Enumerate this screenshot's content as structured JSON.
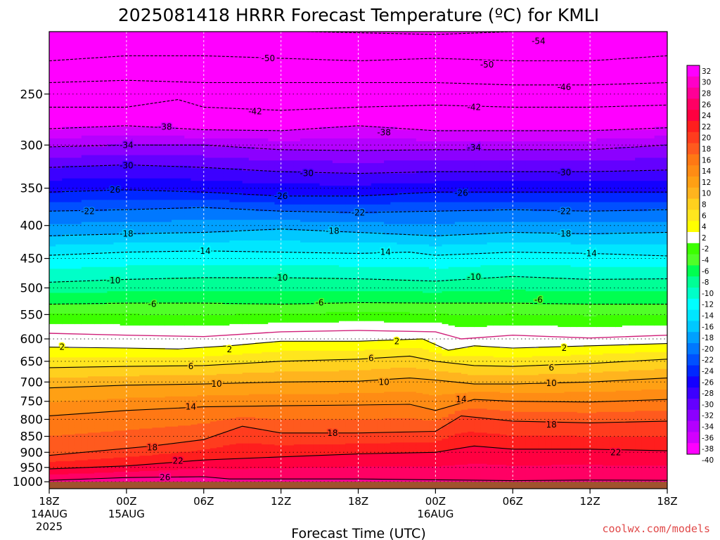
{
  "chart_data": {
    "type": "heatmap",
    "title": "2025081418 HRRR Forecast Temperature (ºC) for KMLI",
    "xlabel": "Forecast Time (UTC)",
    "ylabel": "",
    "credit": "coolwx.com/models",
    "x_unit": "forecast hour",
    "xlim": [
      0,
      48
    ],
    "x_ticks": [
      {
        "x": 0,
        "label": "18Z",
        "sub1": "14AUG",
        "sub2": "2025"
      },
      {
        "x": 6,
        "label": "00Z",
        "sub1": "15AUG",
        "sub2": ""
      },
      {
        "x": 12,
        "label": "06Z",
        "sub1": "",
        "sub2": ""
      },
      {
        "x": 18,
        "label": "12Z",
        "sub1": "",
        "sub2": ""
      },
      {
        "x": 24,
        "label": "18Z",
        "sub1": "",
        "sub2": ""
      },
      {
        "x": 30,
        "label": "00Z",
        "sub1": "16AUG",
        "sub2": ""
      },
      {
        "x": 36,
        "label": "06Z",
        "sub1": "",
        "sub2": ""
      },
      {
        "x": 42,
        "label": "12Z",
        "sub1": "",
        "sub2": ""
      },
      {
        "x": 48,
        "label": "18Z",
        "sub1": "",
        "sub2": ""
      }
    ],
    "y_unit": "hPa",
    "ylim": [
      1025,
      200
    ],
    "y_ticks": [
      250,
      300,
      350,
      400,
      450,
      500,
      550,
      600,
      650,
      700,
      750,
      800,
      850,
      900,
      950,
      1000
    ],
    "surface_pressure_hpa": 1000,
    "colorbar": {
      "labels": [
        32,
        30,
        28,
        26,
        24,
        22,
        20,
        18,
        16,
        14,
        12,
        10,
        8,
        6,
        4,
        2,
        -2,
        -4,
        -6,
        -8,
        -10,
        -12,
        -14,
        -16,
        -18,
        -20,
        -22,
        -24,
        -26,
        -28,
        -30,
        -32,
        -34,
        -36,
        -38,
        -40
      ],
      "colors": [
        "#ff00ff",
        "#ff00c8",
        "#ff0096",
        "#ff0064",
        "#ff0040",
        "#ff1e1e",
        "#ff3c1e",
        "#ff5a1e",
        "#ff7814",
        "#ff8c14",
        "#ffa014",
        "#ffb41e",
        "#ffd01e",
        "#ffe61e",
        "#ffff00",
        "#ffffff",
        "#3cff00",
        "#50ff28",
        "#00ff50",
        "#00ff96",
        "#00ffc8",
        "#00ffff",
        "#00e6ff",
        "#00c8ff",
        "#00a0ff",
        "#0078ff",
        "#0050ff",
        "#0028ff",
        "#1400ff",
        "#3c00ff",
        "#6400ff",
        "#8c00ff",
        "#b400ff",
        "#d200ff",
        "#ff00ff"
      ]
    },
    "isotherms": [
      {
        "temp": 26,
        "points": [
          [
            0,
            995
          ],
          [
            6,
            985
          ],
          [
            12,
            982
          ],
          [
            14,
            990
          ],
          [
            24,
            990
          ],
          [
            30,
            993
          ],
          [
            36,
            996
          ],
          [
            42,
            994
          ],
          [
            48,
            995
          ]
        ],
        "labels": [
          [
            9,
            985
          ]
        ]
      },
      {
        "temp": 22,
        "points": [
          [
            0,
            955
          ],
          [
            6,
            945
          ],
          [
            12,
            925
          ],
          [
            18,
            915
          ],
          [
            24,
            905
          ],
          [
            30,
            900
          ],
          [
            33,
            880
          ],
          [
            36,
            890
          ],
          [
            42,
            890
          ],
          [
            48,
            895
          ]
        ],
        "labels": [
          [
            10,
            928
          ],
          [
            44,
            900
          ]
        ]
      },
      {
        "temp": 18,
        "points": [
          [
            0,
            910
          ],
          [
            4,
            895
          ],
          [
            8,
            880
          ],
          [
            12,
            860
          ],
          [
            15,
            820
          ],
          [
            18,
            840
          ],
          [
            24,
            840
          ],
          [
            30,
            835
          ],
          [
            32,
            790
          ],
          [
            36,
            805
          ],
          [
            42,
            810
          ],
          [
            48,
            805
          ]
        ],
        "labels": [
          [
            8,
            885
          ],
          [
            22,
            840
          ],
          [
            39,
            815
          ]
        ]
      },
      {
        "temp": 14,
        "points": [
          [
            0,
            790
          ],
          [
            6,
            775
          ],
          [
            12,
            765
          ],
          [
            18,
            762
          ],
          [
            24,
            760
          ],
          [
            28,
            758
          ],
          [
            30,
            775
          ],
          [
            33,
            745
          ],
          [
            36,
            750
          ],
          [
            42,
            752
          ],
          [
            48,
            745
          ]
        ],
        "labels": [
          [
            11,
            765
          ],
          [
            32,
            745
          ]
        ]
      },
      {
        "temp": 10,
        "points": [
          [
            0,
            715
          ],
          [
            6,
            708
          ],
          [
            12,
            705
          ],
          [
            18,
            700
          ],
          [
            24,
            698
          ],
          [
            28,
            690
          ],
          [
            30,
            695
          ],
          [
            33,
            705
          ],
          [
            36,
            705
          ],
          [
            42,
            700
          ],
          [
            48,
            690
          ]
        ],
        "labels": [
          [
            13,
            705
          ],
          [
            26,
            700
          ],
          [
            39,
            703
          ]
        ]
      },
      {
        "temp": 6,
        "points": [
          [
            0,
            665
          ],
          [
            6,
            662
          ],
          [
            12,
            660
          ],
          [
            18,
            650
          ],
          [
            24,
            645
          ],
          [
            28,
            638
          ],
          [
            30,
            650
          ],
          [
            33,
            660
          ],
          [
            36,
            662
          ],
          [
            42,
            655
          ],
          [
            48,
            645
          ]
        ],
        "labels": [
          [
            11,
            662
          ],
          [
            25,
            643
          ],
          [
            39,
            665
          ]
        ]
      },
      {
        "temp": 2,
        "points": [
          [
            0,
            618
          ],
          [
            6,
            620
          ],
          [
            10,
            622
          ],
          [
            14,
            615
          ],
          [
            18,
            605
          ],
          [
            24,
            605
          ],
          [
            29,
            600
          ],
          [
            31,
            625
          ],
          [
            33,
            615
          ],
          [
            36,
            620
          ],
          [
            42,
            615
          ],
          [
            48,
            610
          ]
        ],
        "labels": [
          [
            1,
            618
          ],
          [
            14,
            623
          ],
          [
            27,
            605
          ],
          [
            40,
            620
          ]
        ]
      },
      {
        "temp": -6,
        "points": [
          [
            0,
            530
          ],
          [
            6,
            528
          ],
          [
            12,
            528
          ],
          [
            18,
            530
          ],
          [
            24,
            527
          ],
          [
            30,
            528
          ],
          [
            36,
            528
          ],
          [
            42,
            530
          ],
          [
            48,
            530
          ]
        ],
        "labels": [
          [
            8,
            530
          ],
          [
            21,
            527
          ],
          [
            38,
            522
          ]
        ]
      },
      {
        "temp": -10,
        "points": [
          [
            0,
            490
          ],
          [
            6,
            485
          ],
          [
            12,
            482
          ],
          [
            18,
            482
          ],
          [
            24,
            484
          ],
          [
            30,
            488
          ],
          [
            36,
            480
          ],
          [
            42,
            485
          ],
          [
            48,
            484
          ]
        ],
        "labels": [
          [
            5,
            487
          ],
          [
            18,
            482
          ],
          [
            33,
            481
          ]
        ]
      },
      {
        "temp": -14,
        "points": [
          [
            0,
            445
          ],
          [
            6,
            440
          ],
          [
            12,
            438
          ],
          [
            18,
            440
          ],
          [
            24,
            442
          ],
          [
            28,
            440
          ],
          [
            30,
            445
          ],
          [
            36,
            440
          ],
          [
            42,
            442
          ],
          [
            48,
            446
          ]
        ],
        "labels": [
          [
            12,
            438
          ],
          [
            26,
            440
          ],
          [
            42,
            442
          ]
        ]
      },
      {
        "temp": -18,
        "points": [
          [
            0,
            415
          ],
          [
            6,
            412
          ],
          [
            12,
            410
          ],
          [
            18,
            405
          ],
          [
            24,
            410
          ],
          [
            30,
            415
          ],
          [
            36,
            410
          ],
          [
            42,
            412
          ],
          [
            48,
            410
          ]
        ],
        "labels": [
          [
            6,
            412
          ],
          [
            22,
            408
          ],
          [
            40,
            412
          ]
        ]
      },
      {
        "temp": -22,
        "points": [
          [
            0,
            380
          ],
          [
            6,
            378
          ],
          [
            12,
            375
          ],
          [
            18,
            380
          ],
          [
            24,
            382
          ],
          [
            30,
            380
          ],
          [
            36,
            378
          ],
          [
            42,
            380
          ],
          [
            48,
            378
          ]
        ],
        "labels": [
          [
            3,
            380
          ],
          [
            24,
            382
          ],
          [
            40,
            380
          ]
        ]
      },
      {
        "temp": -26,
        "points": [
          [
            0,
            355
          ],
          [
            6,
            352
          ],
          [
            12,
            355
          ],
          [
            18,
            360
          ],
          [
            24,
            360
          ],
          [
            30,
            355
          ],
          [
            36,
            355
          ],
          [
            42,
            355
          ],
          [
            48,
            355
          ]
        ],
        "labels": [
          [
            5,
            352
          ],
          [
            18,
            360
          ],
          [
            32,
            356
          ]
        ]
      },
      {
        "temp": -30,
        "points": [
          [
            0,
            325
          ],
          [
            6,
            322
          ],
          [
            12,
            325
          ],
          [
            18,
            330
          ],
          [
            24,
            332
          ],
          [
            30,
            330
          ],
          [
            36,
            330
          ],
          [
            42,
            330
          ],
          [
            48,
            328
          ]
        ],
        "labels": [
          [
            6,
            323
          ],
          [
            20,
            332
          ],
          [
            40,
            331
          ]
        ]
      },
      {
        "temp": -34,
        "points": [
          [
            0,
            302
          ],
          [
            6,
            300
          ],
          [
            12,
            300
          ],
          [
            18,
            305
          ],
          [
            24,
            306
          ],
          [
            30,
            305
          ],
          [
            36,
            305
          ],
          [
            42,
            305
          ],
          [
            48,
            300
          ]
        ],
        "labels": [
          [
            6,
            300
          ],
          [
            33,
            303
          ]
        ]
      },
      {
        "temp": -38,
        "points": [
          [
            0,
            283
          ],
          [
            6,
            280
          ],
          [
            12,
            284
          ],
          [
            18,
            285
          ],
          [
            24,
            280
          ],
          [
            30,
            285
          ],
          [
            36,
            285
          ],
          [
            42,
            285
          ],
          [
            48,
            282
          ]
        ],
        "labels": [
          [
            9,
            281
          ],
          [
            26,
            287
          ]
        ]
      },
      {
        "temp": -42,
        "points": [
          [
            0,
            262
          ],
          [
            6,
            262
          ],
          [
            10,
            255
          ],
          [
            12,
            262
          ],
          [
            18,
            265
          ],
          [
            24,
            262
          ],
          [
            30,
            260
          ],
          [
            36,
            262
          ],
          [
            42,
            262
          ],
          [
            48,
            260
          ]
        ],
        "labels": [
          [
            16,
            266
          ],
          [
            33,
            262
          ]
        ]
      },
      {
        "temp": -46,
        "points": [
          [
            0,
            240
          ],
          [
            6,
            238
          ],
          [
            12,
            240
          ],
          [
            18,
            240
          ],
          [
            24,
            240
          ],
          [
            30,
            240
          ],
          [
            36,
            242
          ],
          [
            42,
            242
          ],
          [
            48,
            240
          ]
        ],
        "labels": [
          [
            40,
            244
          ]
        ]
      },
      {
        "temp": -50,
        "points": [
          [
            0,
            222
          ],
          [
            6,
            218
          ],
          [
            12,
            218
          ],
          [
            18,
            220
          ],
          [
            24,
            222
          ],
          [
            30,
            220
          ],
          [
            36,
            222
          ],
          [
            42,
            222
          ],
          [
            48,
            218
          ]
        ],
        "labels": [
          [
            17,
            220
          ],
          [
            34,
            225
          ]
        ]
      },
      {
        "temp": -54,
        "points": [
          [
            20,
            200
          ],
          [
            30,
            202
          ],
          [
            36,
            200
          ],
          [
            42,
            200
          ],
          [
            48,
            200
          ]
        ],
        "labels": [
          [
            38,
            207
          ]
        ]
      }
    ],
    "freezing_line": {
      "temp": 0,
      "points": [
        [
          0,
          588
        ],
        [
          6,
          592
        ],
        [
          12,
          595
        ],
        [
          18,
          585
        ],
        [
          24,
          582
        ],
        [
          30,
          585
        ],
        [
          32,
          600
        ],
        [
          36,
          592
        ],
        [
          42,
          598
        ],
        [
          48,
          592
        ]
      ]
    }
  }
}
